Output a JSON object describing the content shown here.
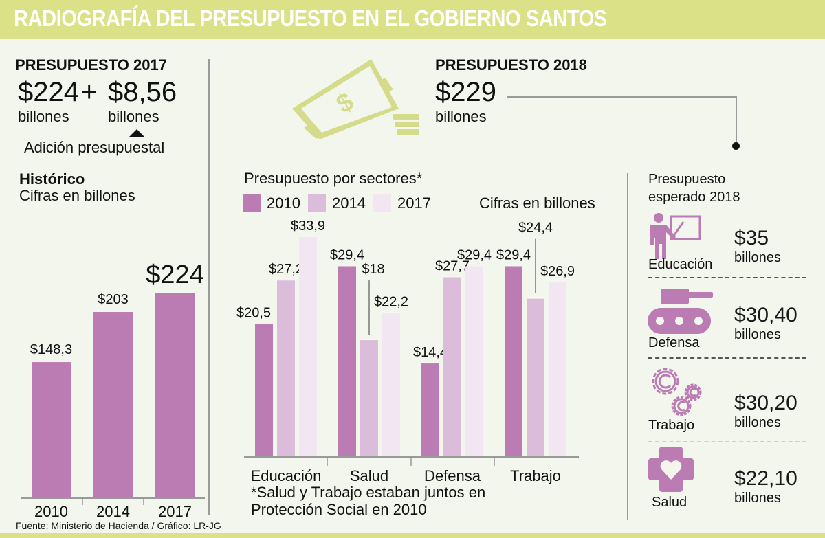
{
  "header": {
    "title": "RADIOGRAFÍA DEL PRESUPUESTO EN EL GOBIERNO SANTOS"
  },
  "colors": {
    "title_bar": "#dbe187",
    "background": "#f2f6ec",
    "c2010": "#bb7bb3",
    "c2014": "#dcbcdb",
    "c2017": "#f1e6f2",
    "money_icon": "#d4dc8c"
  },
  "budget_2017": {
    "heading": "PRESUPUESTO 2017",
    "amount": "$224",
    "plus": "+",
    "addition_amount": "$8,56",
    "unit": "billones",
    "addition_unit": "billones",
    "addition_label": "Adición presupuestal"
  },
  "budget_2018": {
    "heading": "PRESUPUESTO 2018",
    "amount": "$229",
    "unit": "billones",
    "money_icon": "money-bills-coins-icon"
  },
  "expected_2018": {
    "title_line1": "Presupuesto",
    "title_line2": "esperado 2018",
    "items": [
      {
        "sector": "Educación",
        "amount": "$35",
        "unit": "billones",
        "icon": "teacher-icon"
      },
      {
        "sector": "Defensa",
        "amount": "$30,40",
        "unit": "billones",
        "icon": "tank-icon"
      },
      {
        "sector": "Trabajo",
        "amount": "$30,20",
        "unit": "billones",
        "icon": "gears-icon"
      },
      {
        "sector": "Salud",
        "amount": "$22,10",
        "unit": "billones",
        "icon": "health-cross-heart-icon"
      }
    ]
  },
  "footer": {
    "source": "Fuente: Ministerio de Hacienda / Gráfico: LR-JG"
  },
  "chart_data": [
    {
      "type": "bar",
      "title": "Histórico",
      "subtitle": "Cifras en billones",
      "categories": [
        "2010",
        "2014",
        "2017"
      ],
      "values": [
        148.3,
        203,
        224
      ],
      "value_labels": [
        "$148,3",
        "$203",
        "$224"
      ],
      "xlabel": "",
      "ylabel": "",
      "ylim": [
        0,
        224
      ],
      "grid": false
    },
    {
      "type": "bar",
      "title": "Presupuesto por sectores*",
      "subtitle": "Cifras en billones",
      "categories": [
        "Educación",
        "Salud",
        "Defensa",
        "Trabajo"
      ],
      "series": [
        {
          "name": "2010",
          "values": [
            20.5,
            29.4,
            14.4,
            29.4
          ],
          "labels": [
            "$20,5",
            "$29,4",
            "$14,4",
            "$29,4"
          ]
        },
        {
          "name": "2014",
          "values": [
            27.2,
            18,
            27.7,
            24.4
          ],
          "labels": [
            "$27,2",
            "$18",
            "$27,7",
            "$24,4"
          ]
        },
        {
          "name": "2017",
          "values": [
            33.9,
            22.2,
            29.4,
            26.9
          ],
          "labels": [
            "$33,9",
            "$22,2",
            "$29,4",
            "$26,9"
          ]
        }
      ],
      "legend": "top-left",
      "footnote_line1": "*Salud y Trabajo estaban juntos en",
      "footnote_line2": "Protección Social en 2010",
      "ylim": [
        0,
        33.9
      ],
      "grid": false
    }
  ]
}
